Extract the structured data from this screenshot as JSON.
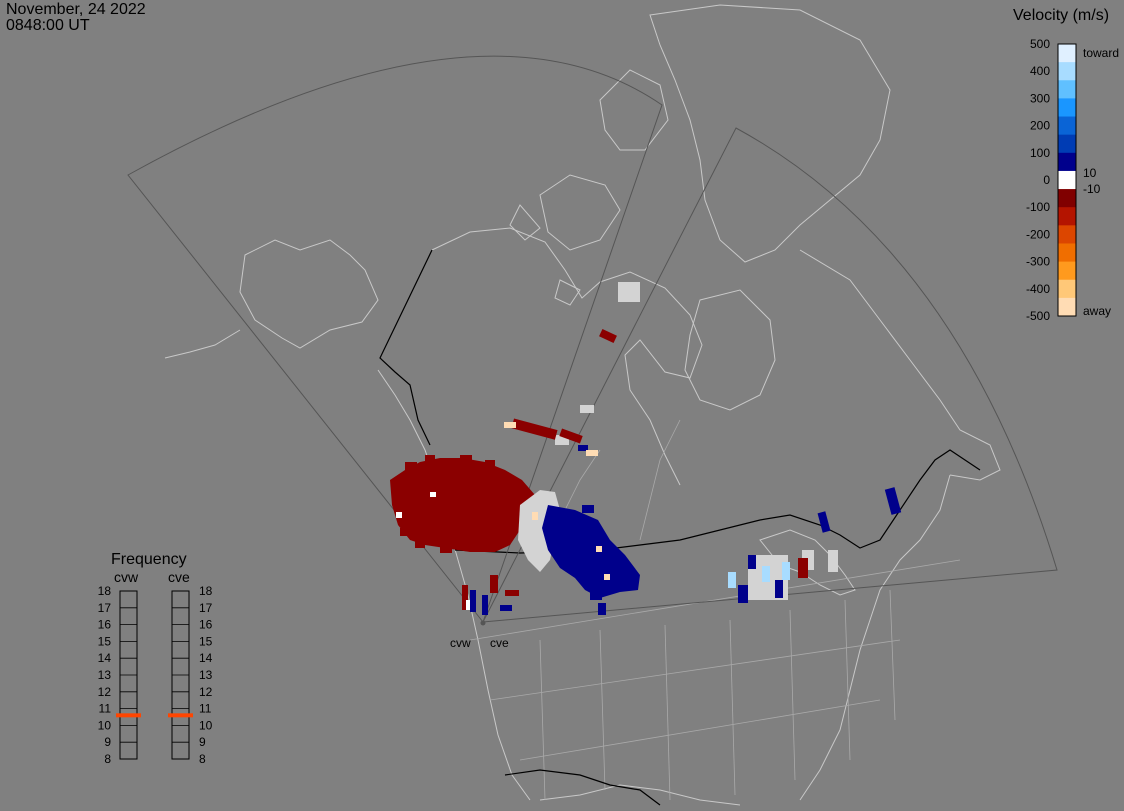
{
  "header": {
    "date": "November, 24 2022",
    "time": "0848:00 UT"
  },
  "legend": {
    "title": "Velocity (m/s)",
    "ticks": [
      "500",
      "400",
      "300",
      "200",
      "100",
      "0",
      "-100",
      "-200",
      "-300",
      "-400",
      "-500"
    ],
    "label_toward": "toward",
    "label_away": "away",
    "label_pos_threshold": "10",
    "label_neg_threshold": "-10",
    "colors": [
      "#e0f0ff",
      "#a8dcff",
      "#60c0ff",
      "#1a96ff",
      "#0a64d6",
      "#003cb4",
      "#00008c",
      "#ffffff",
      "#800000",
      "#b41400",
      "#dc4600",
      "#f06e00",
      "#ff9a1e",
      "#ffc878",
      "#ffdcb4"
    ]
  },
  "frequency": {
    "title": "Frequency",
    "radar_left": "cvw",
    "radar_right": "cve",
    "levels": [
      "18",
      "17",
      "16",
      "15",
      "14",
      "13",
      "12",
      "11",
      "10",
      "9",
      "8"
    ],
    "cvw_mhz": 10.6,
    "cve_mhz": 10.6,
    "marker_color": "#ff4500"
  },
  "radars": [
    {
      "name": "cvw",
      "label": "cvw"
    },
    {
      "name": "cve",
      "label": "cve"
    }
  ],
  "colors": {
    "background": "#808080",
    "land": "#c8c8c8",
    "border_black": "#000000",
    "fov_line": "#555555",
    "ground_scatter": "#d3d3d3",
    "away_dark": "#8b0000",
    "toward_dark": "#00008b"
  }
}
